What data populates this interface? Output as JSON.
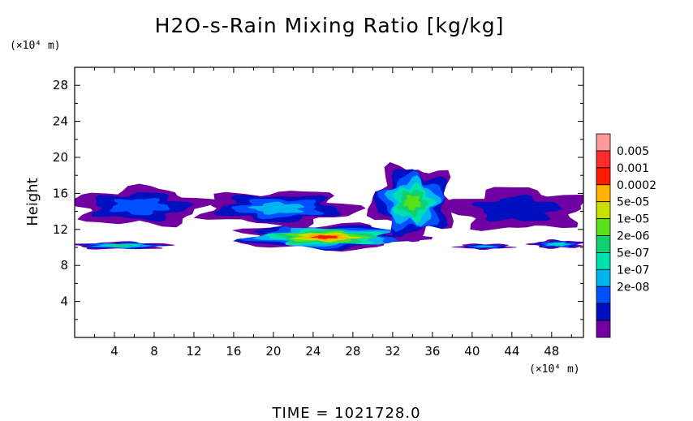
{
  "chart_data": {
    "type": "heatmap",
    "title": "H2O-s-Rain Mixing Ratio [kg/kg]",
    "xlabel": "(×10⁴ m)",
    "ylabel": "Height",
    "yunit": "(×10⁴ m)",
    "x_ticks": [
      "4",
      "8",
      "12",
      "16",
      "20",
      "24",
      "28",
      "32",
      "36",
      "40",
      "44",
      "48"
    ],
    "y_ticks": [
      "4",
      "8",
      "12",
      "16",
      "20",
      "24",
      "28"
    ],
    "xlim": [
      0,
      51.2
    ],
    "ylim": [
      0,
      30
    ],
    "colorbar": {
      "labels": [
        "0.005",
        "0.001",
        "0.0002",
        "5e-05",
        "1e-05",
        "2e-06",
        "5e-07",
        "1e-07",
        "2e-08"
      ],
      "colors": [
        "#ff9a9a",
        "#ff2a2a",
        "#ff1a00",
        "#ffb000",
        "#c8e000",
        "#58e018",
        "#10d070",
        "#00e0b0",
        "#00b4f0",
        "#0050ff",
        "#0010c0",
        "#7000a0"
      ]
    },
    "time_label": "TIME  =  1021728.0",
    "field_regions": [
      {
        "name": "lower-thin-layer-left",
        "x0": 0,
        "x1": 9.5,
        "y0": 9.8,
        "y1": 10.6,
        "level": 5
      },
      {
        "name": "lower-layer-main",
        "x0": 16.5,
        "x1": 34,
        "y0": 9.8,
        "y1": 12.5,
        "level": 9
      },
      {
        "name": "lower-layer-right-1",
        "x0": 38.5,
        "x1": 44,
        "y0": 9.8,
        "y1": 10.4,
        "level": 3
      },
      {
        "name": "lower-layer-right-2",
        "x0": 46,
        "x1": 51.2,
        "y0": 9.9,
        "y1": 10.8,
        "level": 4
      },
      {
        "name": "upper-anvil-left",
        "x0": 0,
        "x1": 13,
        "y0": 12.5,
        "y1": 16.6,
        "level": 2
      },
      {
        "name": "upper-anvil-mid",
        "x0": 13,
        "x1": 28,
        "y0": 12.5,
        "y1": 16.2,
        "level": 3
      },
      {
        "name": "tower",
        "x0": 30,
        "x1": 38,
        "y0": 11,
        "y1": 19,
        "level": 6
      },
      {
        "name": "upper-right",
        "x0": 38,
        "x1": 51.2,
        "y0": 12,
        "y1": 16.5,
        "level": 1
      }
    ]
  }
}
